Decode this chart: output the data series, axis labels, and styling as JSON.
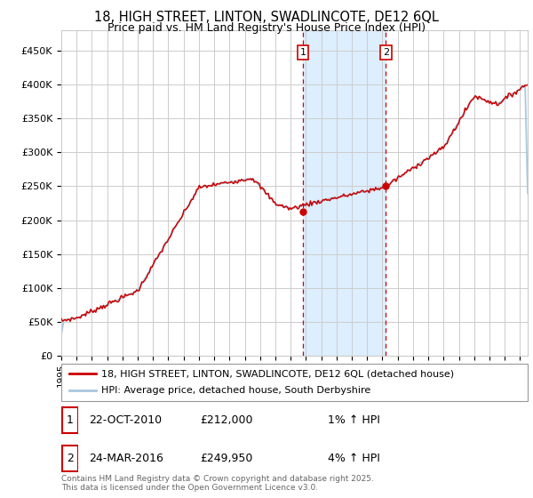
{
  "title_line1": "18, HIGH STREET, LINTON, SWADLINCOTE, DE12 6QL",
  "title_line2": "Price paid vs. HM Land Registry's House Price Index (HPI)",
  "ylim": [
    0,
    480000
  ],
  "yticks": [
    0,
    50000,
    100000,
    150000,
    200000,
    250000,
    300000,
    350000,
    400000,
    450000
  ],
  "ytick_labels": [
    "£0",
    "£50K",
    "£100K",
    "£150K",
    "£200K",
    "£250K",
    "£300K",
    "£350K",
    "£400K",
    "£450K"
  ],
  "xlim_start": 1995.0,
  "xlim_end": 2025.5,
  "sale1_date": 2010.81,
  "sale1_price": 212000,
  "sale1_label": "1",
  "sale2_date": 2016.23,
  "sale2_price": 249950,
  "sale2_label": "2",
  "hpi_color": "#a8c8e0",
  "price_color": "#cc0000",
  "shade_color": "#ddeeff",
  "vline_color": "#cc0000",
  "grid_color": "#cccccc",
  "background_color": "#ffffff",
  "legend_label1": "18, HIGH STREET, LINTON, SWADLINCOTE, DE12 6QL (detached house)",
  "legend_label2": "HPI: Average price, detached house, South Derbyshire",
  "footnote": "Contains HM Land Registry data © Crown copyright and database right 2025.\nThis data is licensed under the Open Government Licence v3.0.",
  "title_fontsize": 10.5,
  "subtitle_fontsize": 9,
  "tick_fontsize": 8,
  "legend_fontsize": 8,
  "table_fontsize": 9,
  "footnote_fontsize": 6.5
}
